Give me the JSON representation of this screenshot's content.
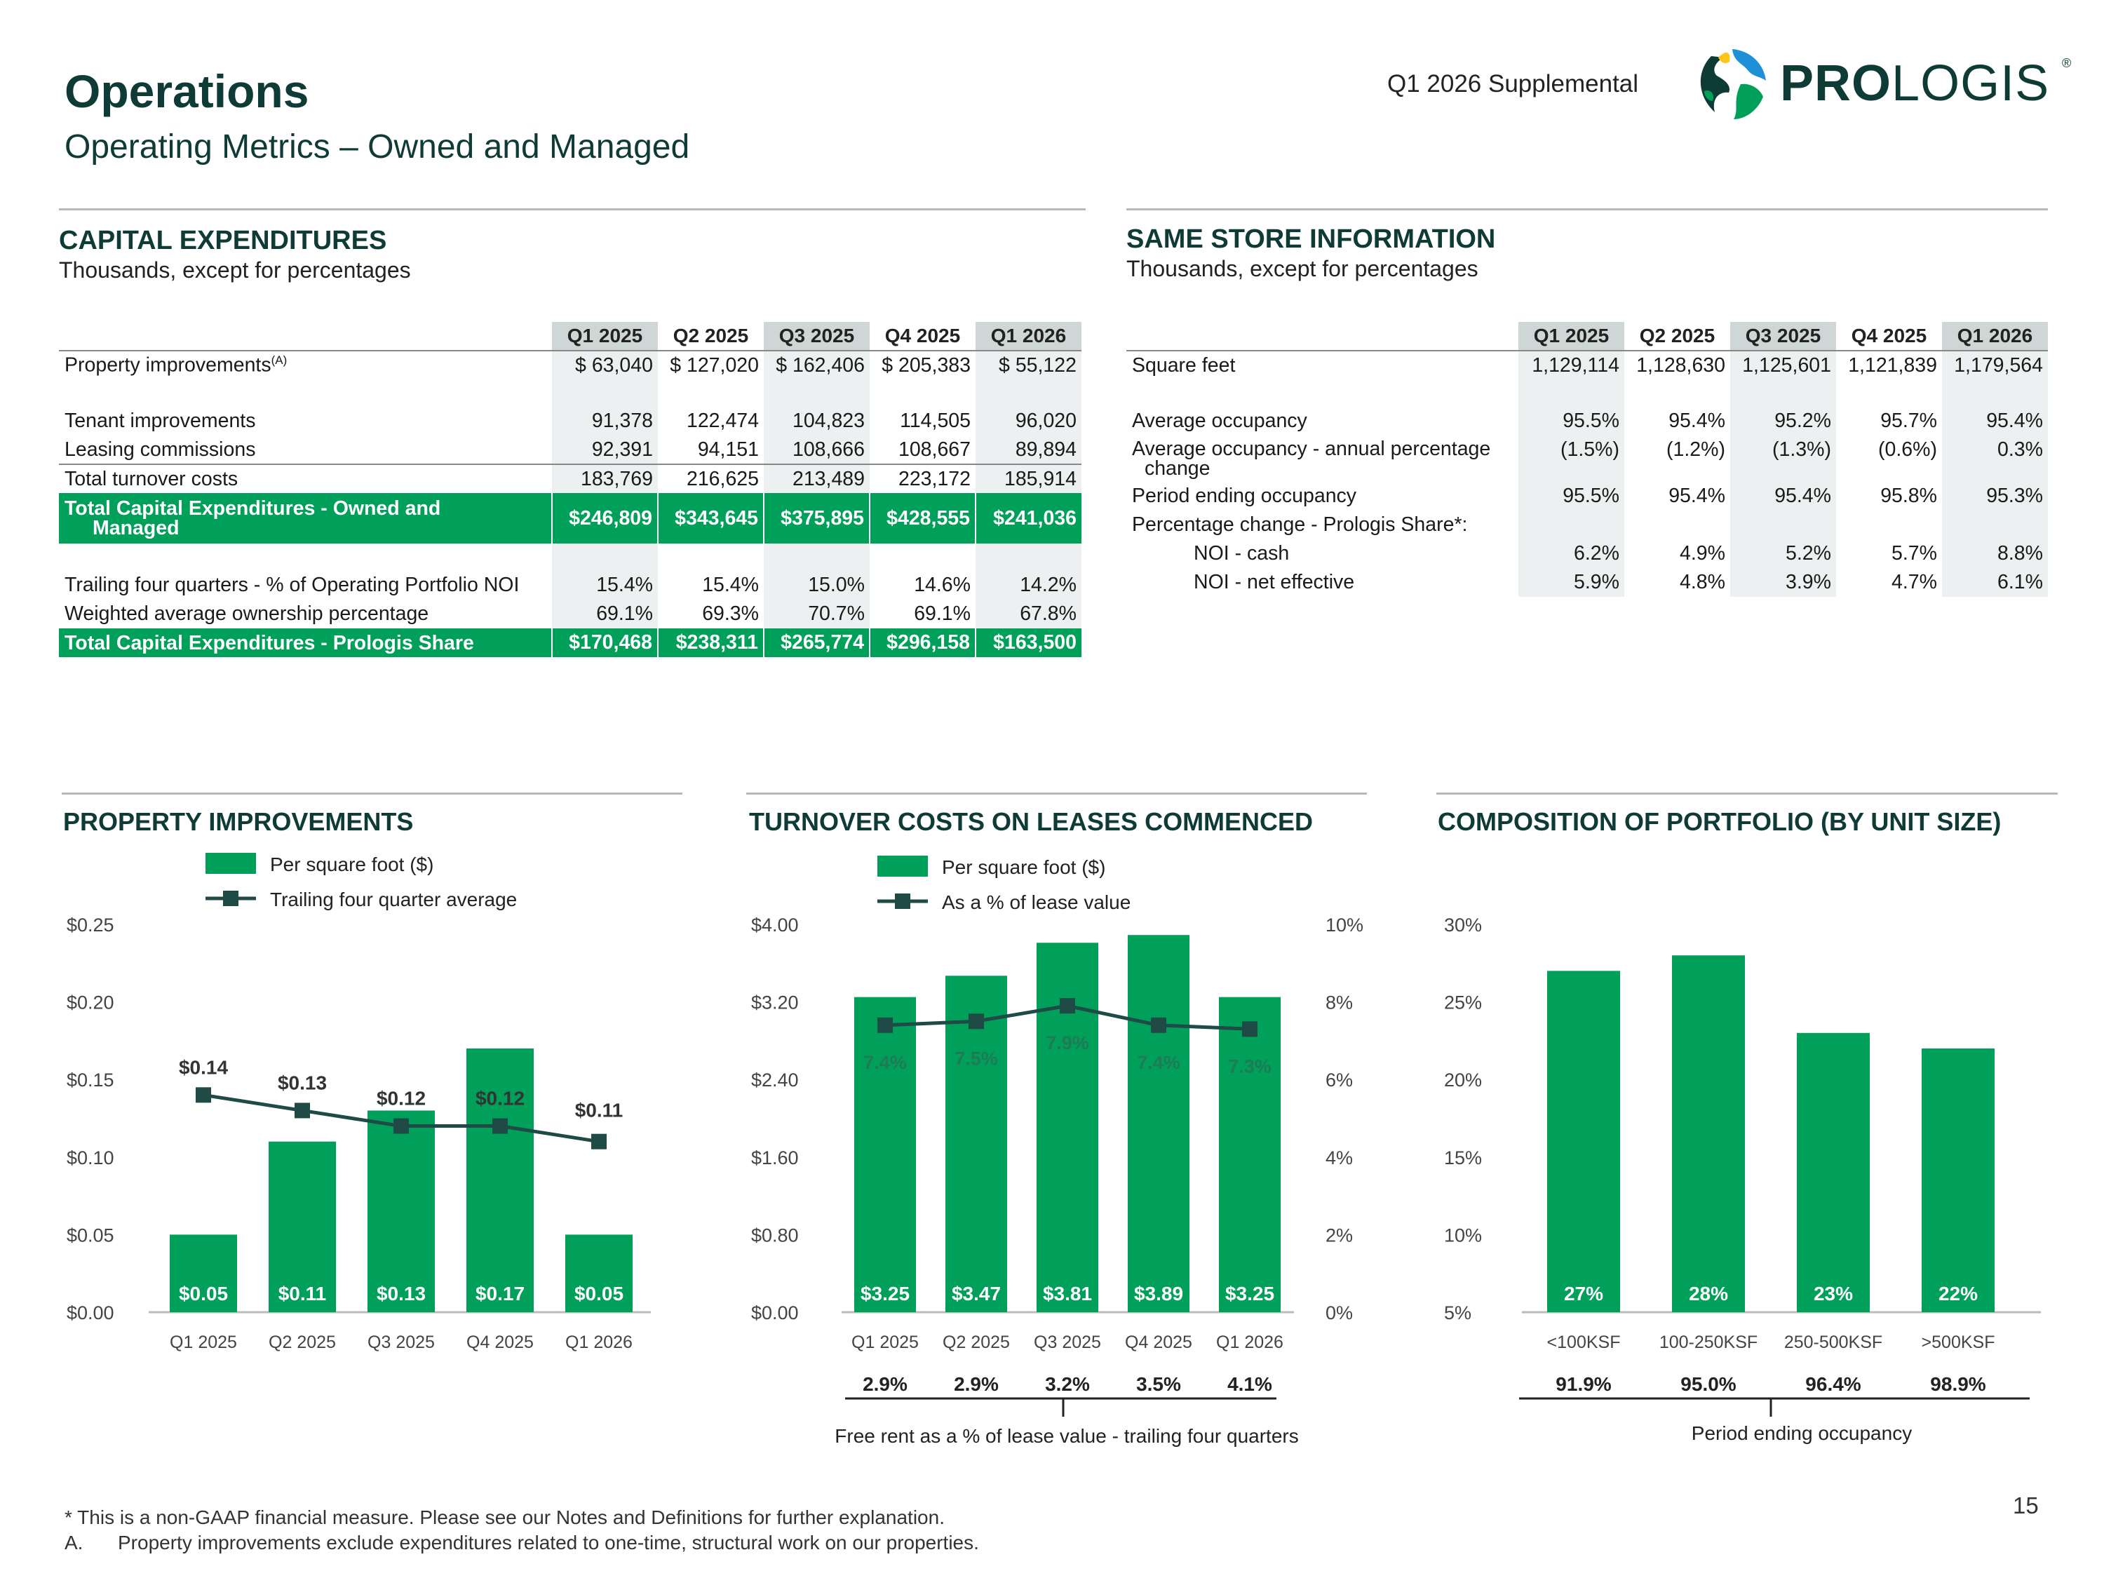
{
  "header": {
    "title": "Operations",
    "subtitle": "Operating Metrics – Owned and Managed",
    "supplemental": "Q1 2026 Supplemental",
    "logo_text_bold": "PRO",
    "logo_text_light": "LOGIS",
    "logo_reg": "®"
  },
  "capex": {
    "title": "CAPITAL EXPENDITURES",
    "subtitle": "Thousands, except for percentages",
    "columns": [
      "Q1 2025",
      "Q2 2025",
      "Q3 2025",
      "Q4 2025",
      "Q1 2026"
    ],
    "prop_label": "Property improvements",
    "prop_sup": "(A)",
    "prop_values": [
      "$  63,040",
      "$ 127,020",
      "$ 162,406",
      "$ 205,383",
      "$  55,122"
    ],
    "tenant_label": "Tenant improvements",
    "tenant_values": [
      "91,378",
      "122,474",
      "104,823",
      "114,505",
      "96,020"
    ],
    "leasing_label": "Leasing commissions",
    "leasing_values": [
      "92,391",
      "94,151",
      "108,666",
      "108,667",
      "89,894"
    ],
    "turnover_label": "Total turnover costs",
    "turnover_values": [
      "183,769",
      "216,625",
      "213,489",
      "223,172",
      "185,914"
    ],
    "total_om_label1": "Total Capital Expenditures - Owned and",
    "total_om_label2": "Managed",
    "total_om_values": [
      "$246,809",
      "$343,645",
      "$375,895",
      "$428,555",
      "$241,036"
    ],
    "trailing_label": "Trailing four quarters - % of Operating Portfolio NOI",
    "trailing_values": [
      "15.4%",
      "15.4%",
      "15.0%",
      "14.6%",
      "14.2%"
    ],
    "ownership_label": "Weighted average ownership percentage",
    "ownership_values": [
      "69.1%",
      "69.3%",
      "70.7%",
      "69.1%",
      "67.8%"
    ],
    "total_ps_label": "Total Capital Expenditures - Prologis Share",
    "total_ps_values": [
      "$170,468",
      "$238,311",
      "$265,774",
      "$296,158",
      "$163,500"
    ]
  },
  "same_store": {
    "title": "SAME STORE INFORMATION",
    "subtitle": "Thousands, except for percentages",
    "columns": [
      "Q1 2025",
      "Q2 2025",
      "Q3 2025",
      "Q4 2025",
      "Q1 2026"
    ],
    "sqft_label": "Square feet",
    "sqft_values": [
      "1,129,114",
      "1,128,630",
      "1,125,601",
      "1,121,839",
      "1,179,564"
    ],
    "avg_occ_label": "Average occupancy",
    "avg_occ_values": [
      "95.5%",
      "95.4%",
      "95.2%",
      "95.7%",
      "95.4%"
    ],
    "avg_occ_chg_label1": "Average occupancy - annual percentage",
    "avg_occ_chg_label2": "change",
    "avg_occ_chg_values": [
      "(1.5%)",
      "(1.2%)",
      "(1.3%)",
      "(0.6%)",
      "0.3%"
    ],
    "period_occ_label": "Period ending occupancy",
    "period_occ_values": [
      "95.5%",
      "95.4%",
      "95.4%",
      "95.8%",
      "95.3%"
    ],
    "pct_change_label": "Percentage change - Prologis Share*:",
    "noi_cash_label": "NOI - cash",
    "noi_cash_values": [
      "6.2%",
      "4.9%",
      "5.2%",
      "5.7%",
      "8.8%"
    ],
    "noi_ne_label": "NOI - net effective",
    "noi_ne_values": [
      "5.9%",
      "4.8%",
      "3.9%",
      "4.7%",
      "6.1%"
    ]
  },
  "colors": {
    "green": "#00a05a",
    "dark": "#1f4a45",
    "title": "#0e3b35"
  },
  "chart_data": [
    {
      "type": "bar",
      "title": "PROPERTY IMPROVEMENTS",
      "categories": [
        "Q1 2025",
        "Q2 2025",
        "Q3 2025",
        "Q4 2025",
        "Q1 2026"
      ],
      "series": [
        {
          "name": "Per square foot ($)",
          "kind": "bar",
          "values": [
            0.05,
            0.11,
            0.13,
            0.17,
            0.05
          ],
          "labels": [
            "$0.05",
            "$0.11",
            "$0.13",
            "$0.17",
            "$0.05"
          ]
        },
        {
          "name": "Trailing four quarter average",
          "kind": "line",
          "values": [
            0.14,
            0.13,
            0.12,
            0.12,
            0.11
          ],
          "labels": [
            "$0.14",
            "$0.13",
            "$0.12",
            "$0.12",
            "$0.11"
          ]
        }
      ],
      "yticks": [
        "$0.25",
        "$0.20",
        "$0.15",
        "$0.10",
        "$0.05",
        "$0.00"
      ],
      "ylim": [
        0,
        0.25
      ]
    },
    {
      "type": "bar",
      "title": "TURNOVER COSTS ON LEASES COMMENCED",
      "categories": [
        "Q1 2025",
        "Q2 2025",
        "Q3 2025",
        "Q4 2025",
        "Q1 2026"
      ],
      "series": [
        {
          "name": "Per square foot ($)",
          "kind": "bar",
          "values": [
            3.25,
            3.47,
            3.81,
            3.89,
            3.25
          ],
          "labels": [
            "$3.25",
            "$3.47",
            "$3.81",
            "$3.89",
            "$3.25"
          ]
        },
        {
          "name": "As a % of lease value",
          "kind": "line",
          "axis": "right",
          "values": [
            7.4,
            7.5,
            7.9,
            7.4,
            7.3
          ],
          "labels": [
            "7.4%",
            "7.5%",
            "7.9%",
            "7.4%",
            "7.3%"
          ]
        }
      ],
      "yticks": [
        "$4.00",
        "$3.20",
        "$2.40",
        "$1.60",
        "$0.80",
        "$0.00"
      ],
      "ylim": [
        0,
        4
      ],
      "y2ticks": [
        "10%",
        "8%",
        "6%",
        "4%",
        "2%",
        "0%"
      ],
      "y2lim": [
        0,
        10
      ],
      "bottom_values": [
        "2.9%",
        "2.9%",
        "3.2%",
        "3.5%",
        "4.1%"
      ],
      "bottom_label": "Free rent as a % of lease value - trailing four quarters"
    },
    {
      "type": "bar",
      "title": "COMPOSITION OF PORTFOLIO (BY UNIT SIZE)",
      "categories": [
        "<100KSF",
        "100-250KSF",
        "250-500KSF",
        ">500KSF"
      ],
      "series": [
        {
          "name": "Composition",
          "kind": "bar",
          "values": [
            27,
            28,
            23,
            22
          ],
          "labels": [
            "27%",
            "28%",
            "23%",
            "22%"
          ]
        }
      ],
      "yticks": [
        "30%",
        "25%",
        "20%",
        "15%",
        "10%",
        "5%"
      ],
      "ylim": [
        5,
        30
      ],
      "bottom_values": [
        "91.9%",
        "95.0%",
        "96.4%",
        "98.9%"
      ],
      "bottom_label": "Period ending occupancy"
    }
  ],
  "footer": {
    "note1": "* This is a non-GAAP financial measure. Please see our Notes and Definitions for further explanation.",
    "note2_letter": "A.",
    "note2": "Property improvements exclude expenditures related to one-time, structural work on our properties.",
    "page": "15"
  }
}
